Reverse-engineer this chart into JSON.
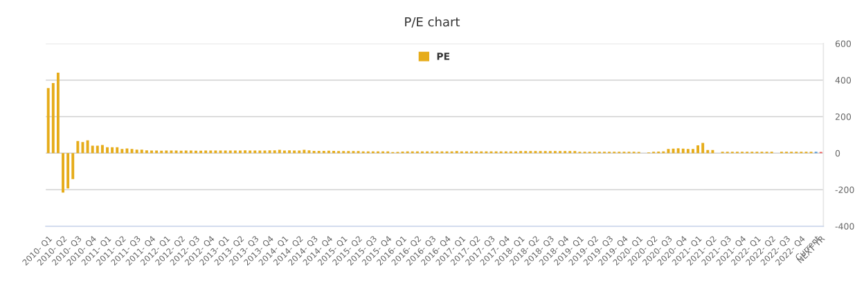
{
  "chart_data": {
    "type": "bar",
    "title": "P/E chart",
    "categories": [
      "2010- Q1",
      null,
      null,
      "2010- Q2",
      null,
      null,
      "2010- Q3",
      null,
      null,
      "2010- Q4",
      null,
      null,
      "2011- Q1",
      null,
      null,
      "2011- Q2",
      null,
      null,
      "2011- Q3",
      null,
      null,
      "2011- Q4",
      null,
      null,
      "2012- Q1",
      null,
      null,
      "2012- Q2",
      null,
      null,
      "2012- Q3",
      null,
      null,
      "2012- Q4",
      null,
      null,
      "2013- Q1",
      null,
      null,
      "2013- Q2",
      null,
      null,
      "2013- Q3",
      null,
      null,
      "2013- Q4",
      null,
      null,
      "2014- Q1",
      null,
      null,
      "2014- Q2",
      null,
      null,
      "2014- Q3",
      null,
      null,
      "2014- Q4",
      null,
      null,
      "2015- Q1",
      null,
      null,
      "2015- Q2",
      null,
      null,
      "2015- Q3",
      null,
      null,
      "2015- Q4",
      null,
      null,
      "2016- Q1",
      null,
      null,
      "2016- Q2",
      null,
      null,
      "2016- Q3",
      null,
      null,
      "2016- Q4",
      null,
      null,
      "2017- Q1",
      null,
      null,
      "2017- Q2",
      null,
      null,
      "2017- Q3",
      null,
      null,
      "2017- Q4",
      null,
      null,
      "2018- Q1",
      null,
      null,
      "2018- Q2",
      null,
      null,
      "2018- Q3",
      null,
      null,
      "2018- Q4",
      null,
      null,
      "2019- Q1",
      null,
      null,
      "2019- Q2",
      null,
      null,
      "2019- Q3",
      null,
      null,
      "2019- Q4",
      null,
      null,
      "2020- Q1",
      null,
      null,
      "2020- Q2",
      null,
      null,
      "2020- Q3",
      null,
      null,
      "2020- Q4",
      null,
      null,
      "2021- Q1",
      null,
      null,
      "2021- Q2",
      null,
      null,
      "2021- Q3",
      null,
      null,
      "2021- Q4",
      null,
      null,
      "2022- Q1",
      null,
      null,
      "2022- Q2",
      null,
      null,
      "2022- Q3",
      null,
      null,
      "2022- Q4",
      null,
      null,
      "Current",
      "NEXT YR"
    ],
    "series": [
      {
        "name": "PE",
        "color": "#e6ac1a",
        "values": [
          356,
          384,
          441,
          -216,
          -193,
          -142,
          66,
          61,
          70,
          41,
          41,
          45,
          32,
          32,
          32,
          23,
          26,
          23,
          19,
          19,
          15,
          14,
          14,
          13,
          14,
          14,
          14,
          13,
          14,
          14,
          13,
          13,
          14,
          14,
          14,
          14,
          14,
          14,
          14,
          14,
          15,
          14,
          14,
          14,
          14,
          15,
          15,
          18,
          14,
          15,
          14,
          14,
          18,
          15,
          12,
          12,
          12,
          13,
          12,
          11,
          11,
          11,
          11,
          11,
          10,
          10,
          10,
          10,
          10,
          10,
          6,
          7,
          9,
          10,
          10,
          10,
          10,
          10,
          10,
          10,
          10,
          10,
          10,
          11,
          10,
          10,
          10,
          10,
          10,
          10,
          10,
          10,
          10,
          10,
          10,
          10,
          11,
          11,
          11,
          11,
          11,
          11,
          11,
          11,
          11,
          11,
          11,
          11,
          8,
          8,
          8,
          8,
          8,
          8,
          8,
          8,
          8,
          8,
          8,
          8,
          7,
          null,
          4,
          8,
          9,
          10,
          23,
          25,
          27,
          25,
          23,
          23,
          43,
          56,
          17,
          17,
          null,
          8,
          8,
          8,
          8,
          8,
          8,
          8,
          8,
          8,
          8,
          8,
          null,
          8,
          8,
          8,
          8,
          8,
          8,
          8,
          8,
          7
        ],
        "colors": [
          "#e6ac1a",
          "#e6ac1a",
          "#e6ac1a",
          "#e6ac1a",
          "#e6ac1a",
          "#e6ac1a",
          "#e6ac1a",
          "#e6ac1a",
          "#e6ac1a",
          "#e6ac1a",
          "#e6ac1a",
          "#e6ac1a",
          "#e6ac1a",
          "#e6ac1a",
          "#e6ac1a",
          "#e6ac1a",
          "#e6ac1a",
          "#e6ac1a",
          "#e6ac1a",
          "#e6ac1a",
          "#e6ac1a",
          "#e6ac1a",
          "#e6ac1a",
          "#e6ac1a",
          "#e6ac1a",
          "#e6ac1a",
          "#e6ac1a",
          "#e6ac1a",
          "#e6ac1a",
          "#e6ac1a",
          "#e6ac1a",
          "#e6ac1a",
          "#e6ac1a",
          "#e6ac1a",
          "#e6ac1a",
          "#e6ac1a",
          "#e6ac1a",
          "#e6ac1a",
          "#e6ac1a",
          "#e6ac1a",
          "#e6ac1a",
          "#e6ac1a",
          "#e6ac1a",
          "#e6ac1a",
          "#e6ac1a",
          "#e6ac1a",
          "#e6ac1a",
          "#e6ac1a",
          "#e6ac1a",
          "#e6ac1a",
          "#e6ac1a",
          "#e6ac1a",
          "#e6ac1a",
          "#e6ac1a",
          "#e6ac1a",
          "#e6ac1a",
          "#e6ac1a",
          "#e6ac1a",
          "#e6ac1a",
          "#e6ac1a",
          "#e6ac1a",
          "#e6ac1a",
          "#e6ac1a",
          "#e6ac1a",
          "#e6ac1a",
          "#e6ac1a",
          "#e6ac1a",
          "#e6ac1a",
          "#e6ac1a",
          "#e6ac1a",
          "#e6ac1a",
          "#e6ac1a",
          "#e6ac1a",
          "#e6ac1a",
          "#e6ac1a",
          "#e6ac1a",
          "#e6ac1a",
          "#e6ac1a",
          "#e6ac1a",
          "#e6ac1a",
          "#e6ac1a",
          "#e6ac1a",
          "#e6ac1a",
          "#e6ac1a",
          "#e6ac1a",
          "#e6ac1a",
          "#e6ac1a",
          "#e6ac1a",
          "#e6ac1a",
          "#e6ac1a",
          "#e6ac1a",
          "#e6ac1a",
          "#e6ac1a",
          "#e6ac1a",
          "#e6ac1a",
          "#e6ac1a",
          "#e6ac1a",
          "#e6ac1a",
          "#e6ac1a",
          "#e6ac1a",
          "#e6ac1a",
          "#e6ac1a",
          "#e6ac1a",
          "#e6ac1a",
          "#e6ac1a",
          "#e6ac1a",
          "#e6ac1a",
          "#e6ac1a",
          "#e6ac1a",
          "#e6ac1a",
          "#e6ac1a",
          "#e6ac1a",
          "#e6ac1a",
          "#e6ac1a",
          "#e6ac1a",
          "#e6ac1a",
          "#e6ac1a",
          "#e6ac1a",
          "#e6ac1a",
          "#e6ac1a",
          "#e6ac1a",
          "#e6ac1a",
          "#e6ac1a",
          "#e6ac1a",
          "#e6ac1a",
          "#e6ac1a",
          "#e6ac1a",
          "#e6ac1a",
          "#e6ac1a",
          "#e6ac1a",
          "#e6ac1a",
          "#e6ac1a",
          "#e6ac1a",
          "#e6ac1a",
          "#e6ac1a",
          "#e6ac1a",
          "#e6ac1a",
          "#e6ac1a",
          "#e6ac1a",
          "#e6ac1a",
          "#e6ac1a",
          "#e6ac1a",
          "#e6ac1a",
          "#e6ac1a",
          "#e6ac1a",
          "#e6ac1a",
          "#e6ac1a",
          "#e6ac1a",
          "#e6ac1a",
          "#e6ac1a",
          "#e6ac1a",
          "#e6ac1a",
          "#e6ac1a",
          "#e6ac1a",
          "#e6ac1a",
          "#e6ac1a",
          "#5b9bd5",
          "#f15c5c"
        ]
      }
    ],
    "ylim": [
      -400,
      600
    ],
    "yticks": [
      -400,
      -200,
      0,
      200,
      400,
      600
    ],
    "grid": "y",
    "legend": "top"
  }
}
